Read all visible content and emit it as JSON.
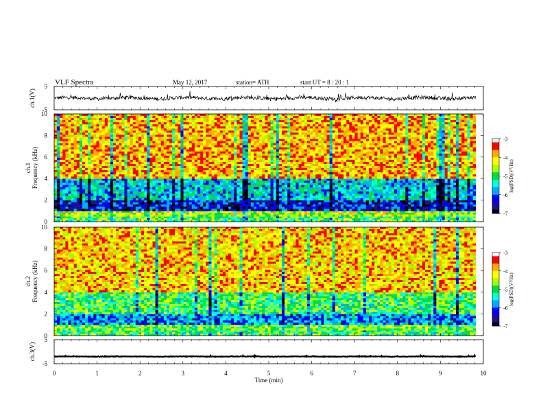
{
  "header": {
    "title": "VLF  Spectra",
    "date": "May 12, 2017",
    "station": "station= ATH",
    "start": "start  UT  =   8  : 20 : 1"
  },
  "colorbar_label": "log(PSD)(V²/Hz)",
  "colorbar_ticks": [
    "-3",
    "-4",
    "-5",
    "-6",
    "-7"
  ],
  "colors": {
    "background": "#ffffff",
    "axis": "#000000",
    "spectrogram_scale": [
      "#000000",
      "#1e0f96",
      "#0000ff",
      "#00aaff",
      "#00ffdd",
      "#00e040",
      "#aaff00",
      "#ffff00",
      "#ffaa00",
      "#ff0000",
      "#ffffff"
    ]
  },
  "chart_data": [
    {
      "type": "line",
      "panel": "ch1-waveform",
      "ylabel": "ch.1(V)",
      "ylim": [
        -5,
        5
      ],
      "yticks": [
        "5",
        "-5"
      ],
      "series": [
        {
          "values": "noisy waveform centered near 0 V, amplitude roughly ±2 V",
          "mean": 0,
          "amplitude": 2
        }
      ],
      "xlim": [
        0,
        10
      ]
    },
    {
      "type": "heatmap",
      "panel": "ch1-spectrogram",
      "ylabel": "ch.1 Frequency (kHz)",
      "ylim": [
        0,
        10
      ],
      "yticks": [
        "0",
        "2",
        "4",
        "6",
        "8",
        "10"
      ],
      "xlim": [
        0,
        10
      ],
      "clim": [
        -7,
        -3
      ],
      "description_bands": [
        {
          "freq_range_khz": [
            0,
            0.5
          ],
          "level": -5.0
        },
        {
          "freq_range_khz": [
            0.5,
            1.0
          ],
          "level": -4.5
        },
        {
          "freq_range_khz": [
            1.0,
            2.0
          ],
          "level": -6.3
        },
        {
          "freq_range_khz": [
            2.0,
            4.0
          ],
          "level": -5.5
        },
        {
          "freq_range_khz": [
            4.0,
            10.0
          ],
          "level": -3.9
        }
      ]
    },
    {
      "type": "heatmap",
      "panel": "ch2-spectrogram",
      "ylabel": "ch.2 Frequency (kHz)",
      "ylim": [
        0,
        10
      ],
      "yticks": [
        "0",
        "2",
        "4",
        "6",
        "8",
        "10"
      ],
      "xlim": [
        0,
        10
      ],
      "clim": [
        -7,
        -3
      ],
      "description_bands": [
        {
          "freq_range_khz": [
            0,
            0.5
          ],
          "level": -5.0
        },
        {
          "freq_range_khz": [
            0.5,
            1.0
          ],
          "level": -4.7
        },
        {
          "freq_range_khz": [
            1.0,
            2.0
          ],
          "level": -5.8
        },
        {
          "freq_range_khz": [
            2.0,
            4.0
          ],
          "level": -5.0
        },
        {
          "freq_range_khz": [
            4.0,
            10.0
          ],
          "level": -4.0
        }
      ]
    },
    {
      "type": "line",
      "panel": "ch3-waveform",
      "ylabel": "ch.3(V)",
      "ylim": [
        -5,
        5
      ],
      "yticks": [
        "5",
        "-5"
      ],
      "series": [
        {
          "values": "thin noisy trace near -2 V",
          "mean": -2,
          "amplitude": 0.3
        }
      ],
      "xlim": [
        0,
        10
      ]
    }
  ],
  "xaxis": {
    "label": "Time  (min)",
    "ticks": [
      "0",
      "1",
      "2",
      "3",
      "4",
      "5",
      "6",
      "7",
      "8",
      "9",
      "10"
    ]
  }
}
